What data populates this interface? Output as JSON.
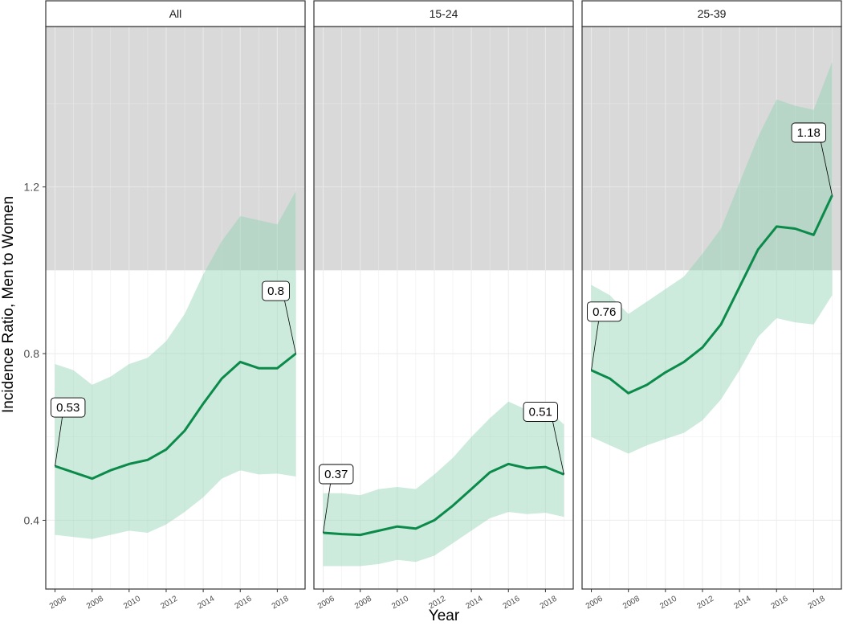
{
  "chart_data": {
    "type": "line",
    "xlabel": "Year",
    "ylabel": "Incidence Ratio, Men to Women",
    "ylim": [
      0.235,
      1.585
    ],
    "xlim": [
      2005.5,
      2019.5
    ],
    "y_ticks": [
      0.4,
      0.8,
      1.2
    ],
    "y_tick_labels": [
      "0.4",
      "0.8",
      "1.2"
    ],
    "x_ticks": [
      2006,
      2008,
      2010,
      2012,
      2014,
      2016,
      2018
    ],
    "x_tick_labels": [
      "2006",
      "2008",
      "2010",
      "2012",
      "2014",
      "2016",
      "2018"
    ],
    "shaded_region": {
      "y_from": 1.0,
      "y_to": 1.585,
      "color": "#c2c2c2"
    },
    "grid": true,
    "colors": {
      "line": "#0b8a4a",
      "ribbon": "#8fd3b3",
      "panel_grid": "#ebebeb"
    },
    "panels": [
      {
        "strip": "All",
        "x": [
          2006,
          2007,
          2008,
          2009,
          2010,
          2011,
          2012,
          2013,
          2014,
          2015,
          2016,
          2017,
          2018,
          2019
        ],
        "y": [
          0.53,
          0.515,
          0.5,
          0.52,
          0.535,
          0.545,
          0.57,
          0.615,
          0.68,
          0.74,
          0.78,
          0.765,
          0.765,
          0.8
        ],
        "lower": [
          0.365,
          0.36,
          0.355,
          0.365,
          0.375,
          0.37,
          0.39,
          0.42,
          0.455,
          0.5,
          0.52,
          0.51,
          0.512,
          0.505
        ],
        "upper": [
          0.775,
          0.76,
          0.725,
          0.745,
          0.775,
          0.79,
          0.83,
          0.895,
          0.99,
          1.07,
          1.13,
          1.12,
          1.11,
          1.19
        ],
        "labels": [
          {
            "text": "0.53",
            "x": 2006,
            "y": 0.53
          },
          {
            "text": "0.8",
            "x": 2019,
            "y": 0.8
          }
        ]
      },
      {
        "strip": "15-24",
        "x": [
          2006,
          2007,
          2008,
          2009,
          2010,
          2011,
          2012,
          2013,
          2014,
          2015,
          2016,
          2017,
          2018,
          2019
        ],
        "y": [
          0.37,
          0.367,
          0.365,
          0.375,
          0.385,
          0.38,
          0.4,
          0.435,
          0.475,
          0.515,
          0.535,
          0.525,
          0.528,
          0.51
        ],
        "lower": [
          0.29,
          0.29,
          0.29,
          0.295,
          0.305,
          0.3,
          0.315,
          0.345,
          0.375,
          0.405,
          0.42,
          0.415,
          0.418,
          0.408
        ],
        "upper": [
          0.465,
          0.465,
          0.46,
          0.475,
          0.48,
          0.475,
          0.51,
          0.55,
          0.6,
          0.645,
          0.685,
          0.665,
          0.67,
          0.63
        ],
        "labels": [
          {
            "text": "0.37",
            "x": 2006,
            "y": 0.37
          },
          {
            "text": "0.51",
            "x": 2019,
            "y": 0.51
          }
        ]
      },
      {
        "strip": "25-39",
        "x": [
          2006,
          2007,
          2008,
          2009,
          2010,
          2011,
          2012,
          2013,
          2014,
          2015,
          2016,
          2017,
          2018,
          2019
        ],
        "y": [
          0.76,
          0.74,
          0.705,
          0.725,
          0.755,
          0.78,
          0.815,
          0.87,
          0.96,
          1.05,
          1.105,
          1.1,
          1.085,
          1.18
        ],
        "lower": [
          0.6,
          0.58,
          0.56,
          0.58,
          0.595,
          0.61,
          0.64,
          0.69,
          0.76,
          0.84,
          0.885,
          0.875,
          0.87,
          0.94
        ],
        "upper": [
          0.965,
          0.94,
          0.895,
          0.925,
          0.955,
          0.985,
          1.04,
          1.1,
          1.21,
          1.32,
          1.41,
          1.395,
          1.385,
          1.5
        ],
        "labels": [
          {
            "text": "0.76",
            "x": 2006,
            "y": 0.76
          },
          {
            "text": "1.18",
            "x": 2019,
            "y": 1.18
          }
        ]
      }
    ]
  }
}
